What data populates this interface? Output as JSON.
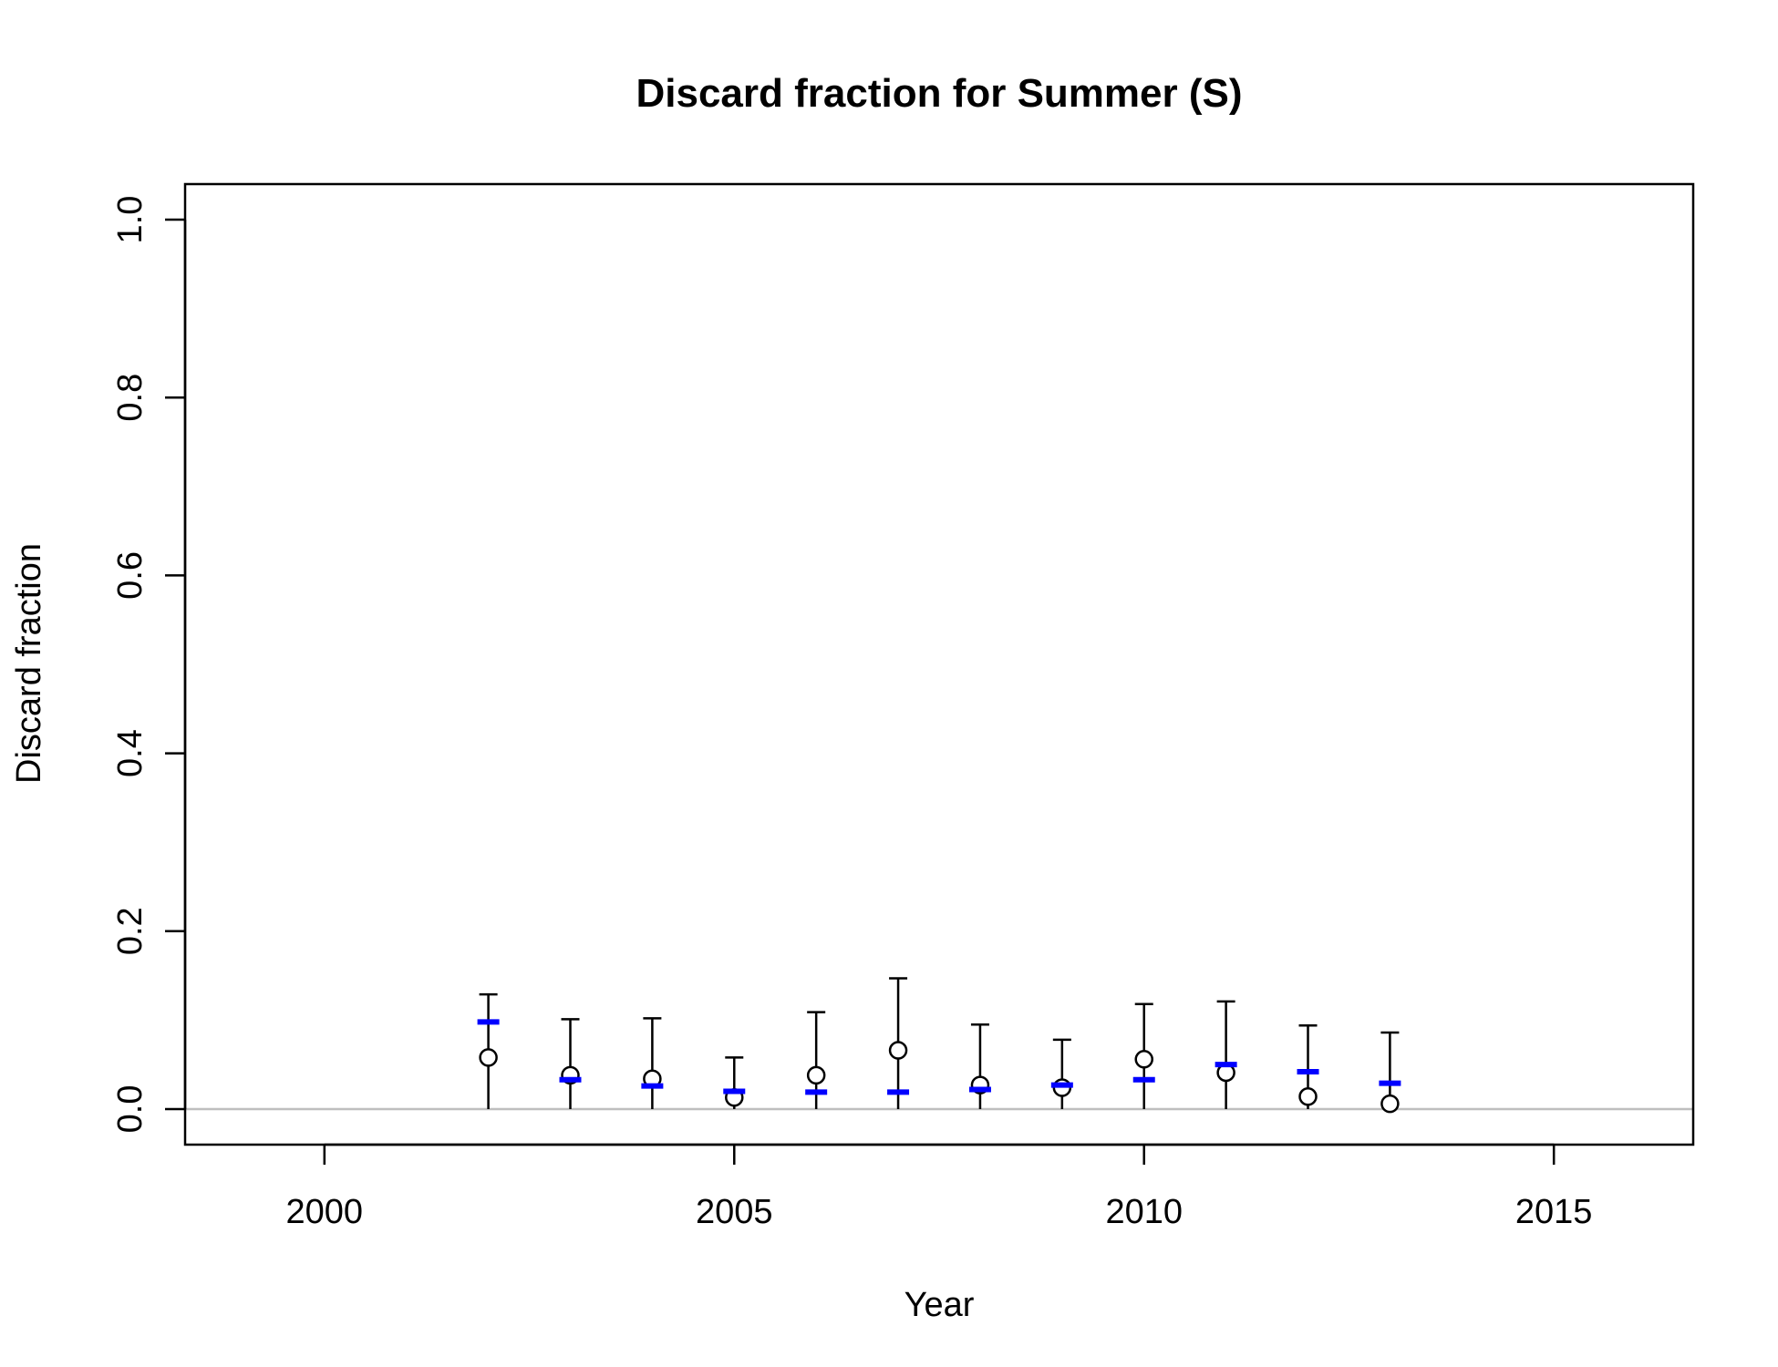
{
  "chart_data": {
    "type": "scatter",
    "title": "Discard fraction for Summer (S)",
    "xlabel": "Year",
    "ylabel": "Discard fraction",
    "xlim": [
      1998.3,
      2016.7
    ],
    "ylim": [
      -0.04,
      1.04
    ],
    "x_ticks": [
      2000,
      2005,
      2010,
      2015
    ],
    "y_ticks": [
      "0.0",
      "0.2",
      "0.4",
      "0.6",
      "0.8",
      "1.0"
    ],
    "reference_line_y": 0,
    "grid": false,
    "legend": "none",
    "colors": {
      "observed": "#000000",
      "expected": "#0000ff",
      "reference_line": "#bebebe"
    },
    "points": [
      {
        "year": 2002,
        "observed": 0.058,
        "upper": 0.129,
        "expected": 0.098
      },
      {
        "year": 2003,
        "observed": 0.038,
        "upper": 0.101,
        "expected": 0.033
      },
      {
        "year": 2004,
        "observed": 0.034,
        "upper": 0.102,
        "expected": 0.026
      },
      {
        "year": 2005,
        "observed": 0.013,
        "upper": 0.058,
        "expected": 0.02
      },
      {
        "year": 2006,
        "observed": 0.038,
        "upper": 0.109,
        "expected": 0.019
      },
      {
        "year": 2007,
        "observed": 0.066,
        "upper": 0.147,
        "expected": 0.019
      },
      {
        "year": 2008,
        "observed": 0.027,
        "upper": 0.095,
        "expected": 0.022
      },
      {
        "year": 2009,
        "observed": 0.024,
        "upper": 0.078,
        "expected": 0.027
      },
      {
        "year": 2010,
        "observed": 0.056,
        "upper": 0.118,
        "expected": 0.033
      },
      {
        "year": 2011,
        "observed": 0.041,
        "upper": 0.121,
        "expected": 0.05
      },
      {
        "year": 2012,
        "observed": 0.014,
        "upper": 0.094,
        "expected": 0.042
      },
      {
        "year": 2013,
        "observed": 0.006,
        "upper": 0.086,
        "expected": 0.029
      }
    ]
  }
}
